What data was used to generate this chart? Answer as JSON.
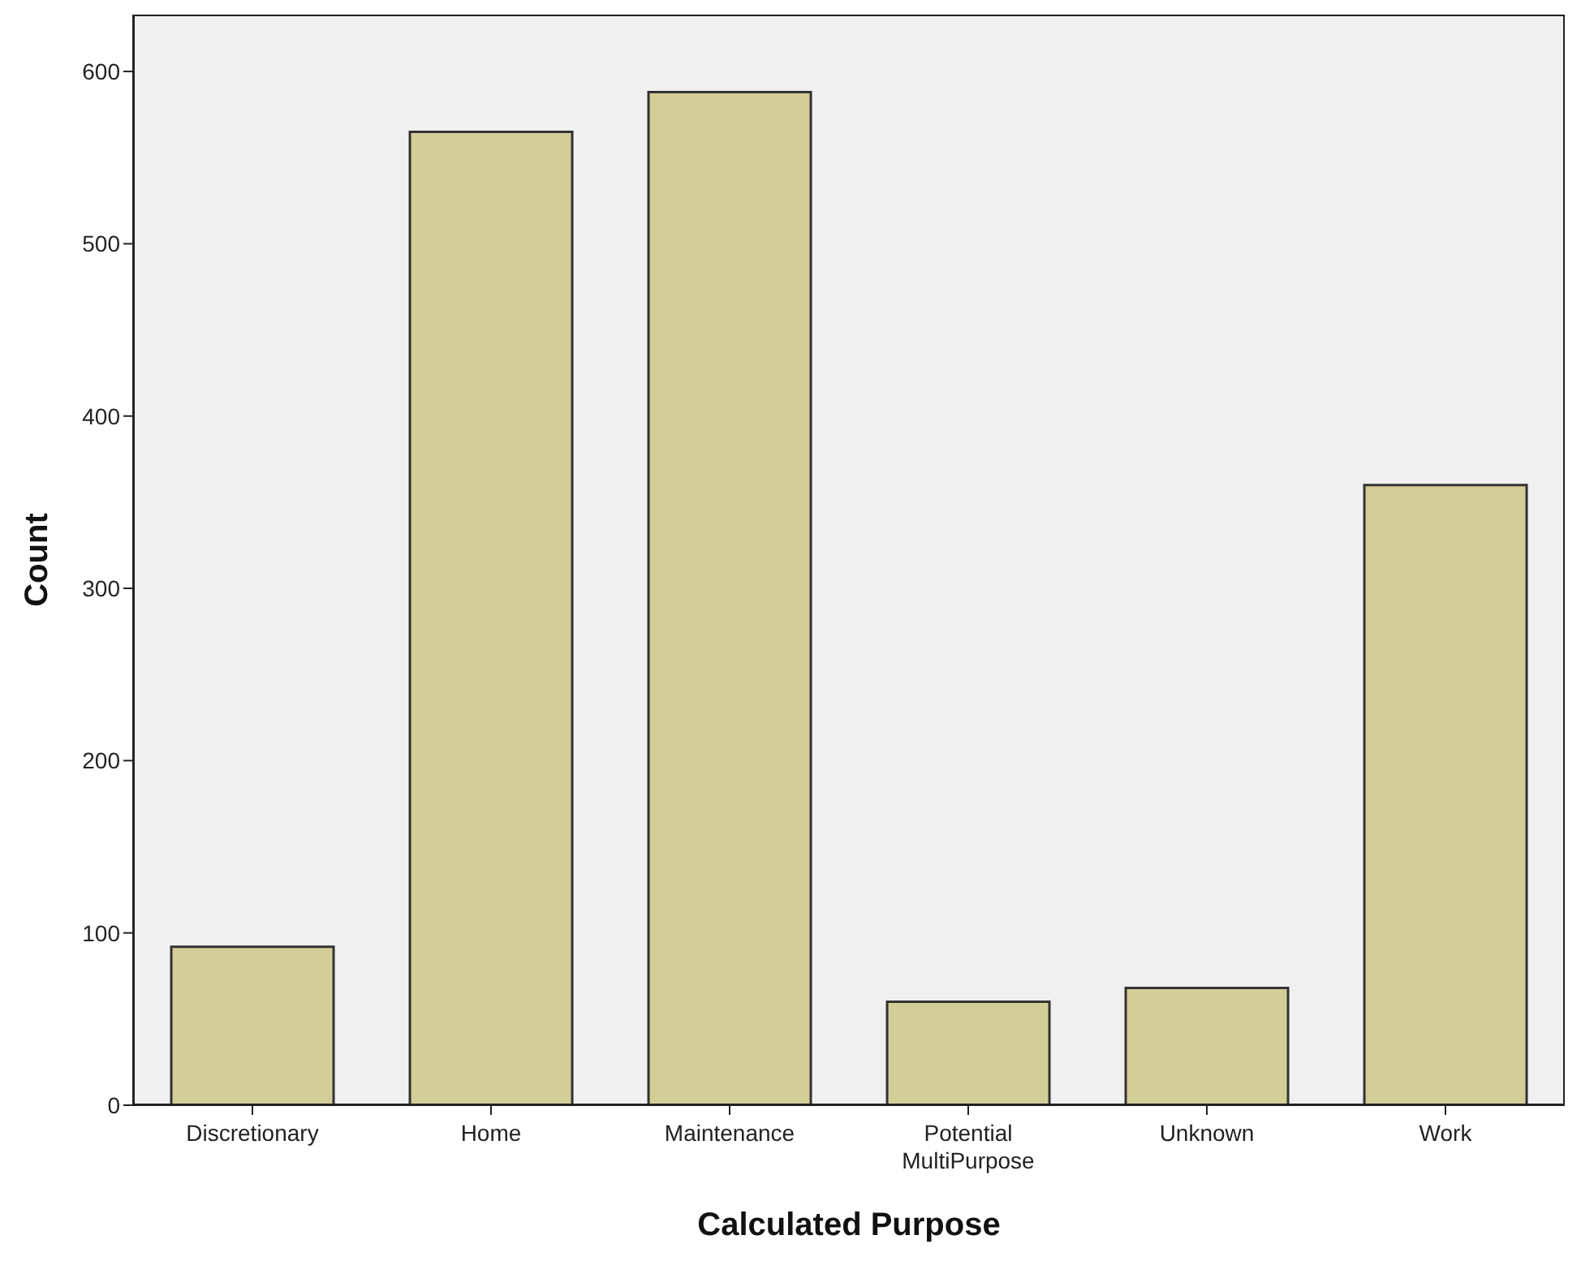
{
  "chart_data": {
    "type": "bar",
    "xlabel": "Calculated Purpose",
    "ylabel": "Count",
    "categories": [
      "Discretionary",
      "Home",
      "Maintenance",
      "Potential MultiPurpose",
      "Unknown",
      "Work"
    ],
    "values": [
      92,
      565,
      588,
      60,
      68,
      360
    ],
    "color": "#d3ce97",
    "ylim": [
      0,
      633
    ],
    "yticks": [
      0,
      100,
      200,
      300,
      400,
      500,
      600
    ],
    "grid": false
  }
}
